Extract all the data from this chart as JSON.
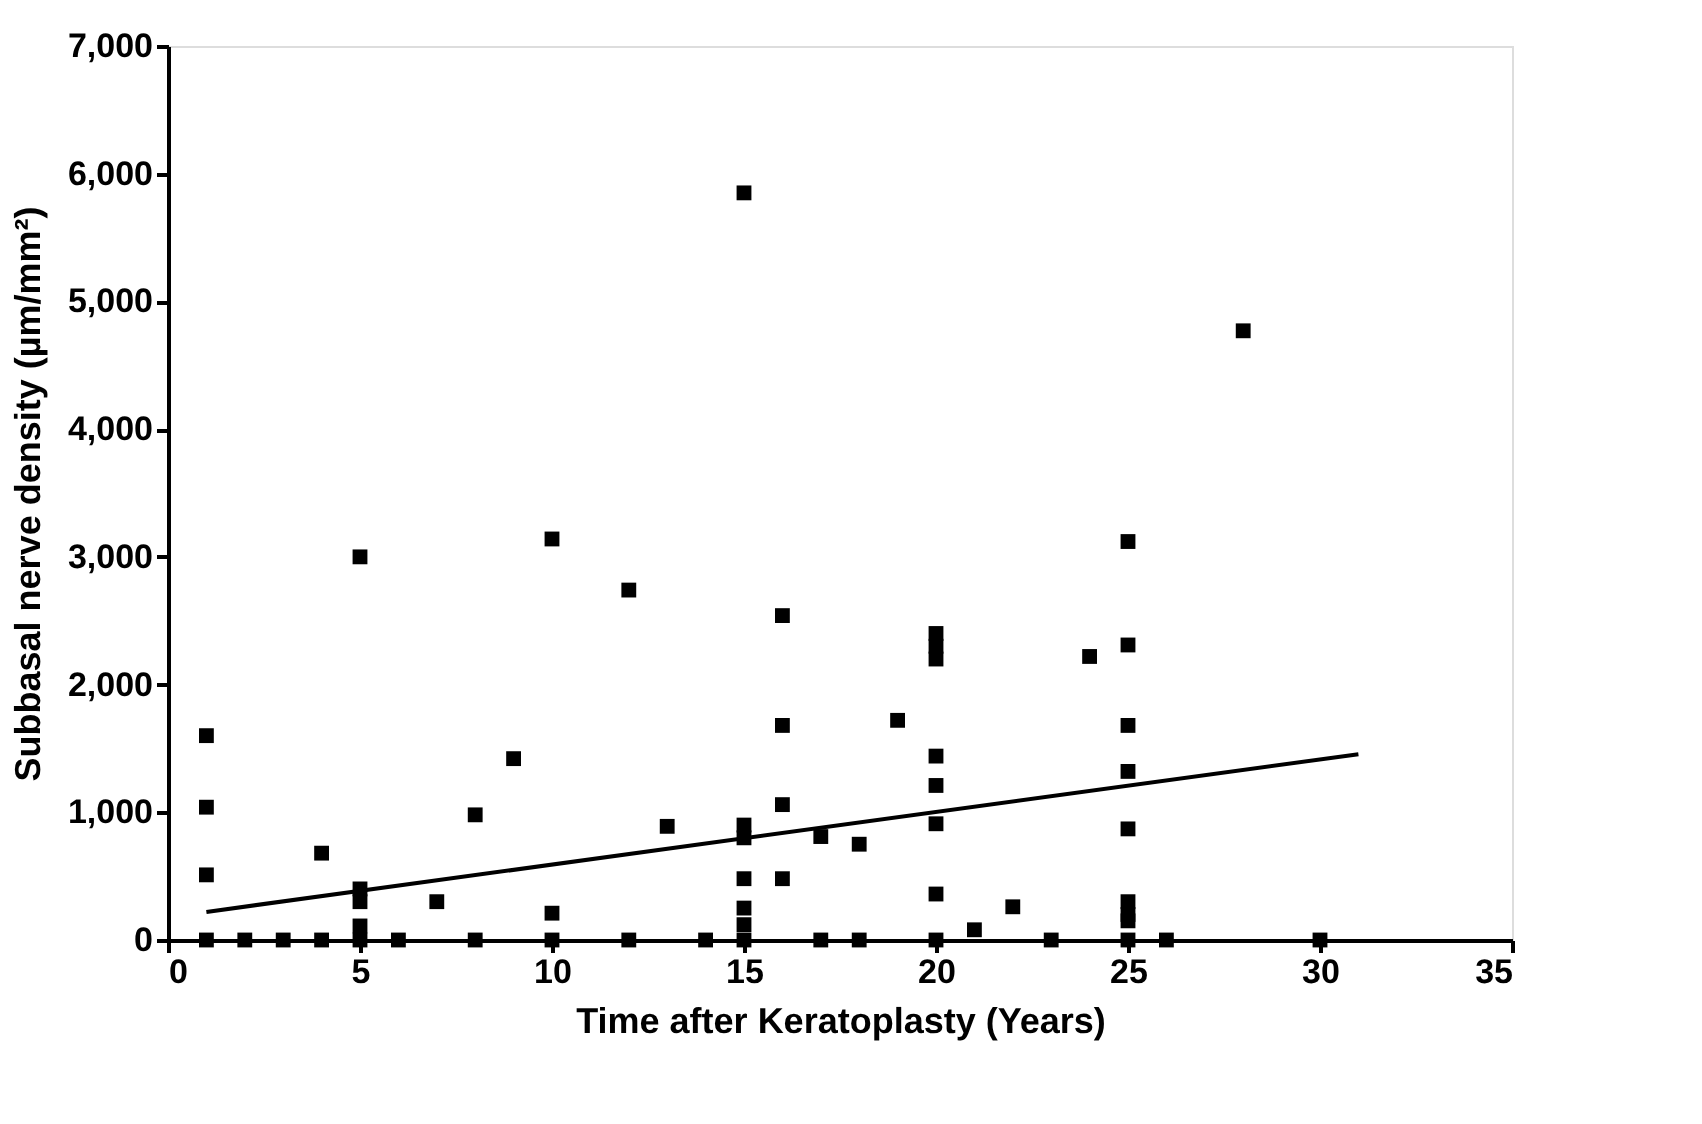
{
  "chart_data": {
    "type": "scatter",
    "xlabel": "Time after Keratoplasty (Years)",
    "ylabel": "Subbasal nerve density (µm/mm²)",
    "xlim": [
      0,
      35
    ],
    "xticks": [
      0,
      5,
      10,
      15,
      20,
      25,
      30,
      35
    ],
    "ylim": [
      0,
      7000
    ],
    "yticks": [
      {
        "value": 0,
        "label": "0"
      },
      {
        "value": 1000,
        "label": "1,000"
      },
      {
        "value": 2000,
        "label": "2,000"
      },
      {
        "value": 3000,
        "label": "3,000"
      },
      {
        "value": 4000,
        "label": "4,000"
      },
      {
        "value": 5000,
        "label": "5,000"
      },
      {
        "value": 6000,
        "label": "6,000"
      },
      {
        "value": 7000,
        "label": "7,000"
      }
    ],
    "grid": false,
    "marker": "square",
    "series": [
      {
        "color": "#000000",
        "x": [
          1,
          1,
          1,
          1,
          2,
          3,
          4,
          4,
          5,
          5,
          5,
          5,
          5,
          6,
          7,
          8,
          8,
          9,
          10,
          10,
          10,
          12,
          12,
          13,
          14,
          15,
          15,
          15,
          15,
          15,
          15,
          15,
          16,
          16,
          16,
          16,
          17,
          17,
          18,
          18,
          19,
          20,
          20,
          20,
          20,
          20,
          20,
          20,
          20,
          21,
          22,
          23,
          24,
          25,
          25,
          25,
          25,
          25,
          25,
          25,
          25,
          25,
          26,
          28,
          30
        ],
        "values": [
          1600,
          1040,
          510,
          0,
          0,
          0,
          680,
          0,
          3000,
          400,
          300,
          110,
          0,
          0,
          300,
          980,
          0,
          1420,
          3140,
          210,
          0,
          2740,
          0,
          890,
          0,
          5850,
          900,
          800,
          480,
          250,
          120,
          0,
          2540,
          1680,
          1060,
          480,
          810,
          0,
          750,
          0,
          1720,
          2400,
          2300,
          2200,
          1440,
          1210,
          910,
          360,
          0,
          80,
          260,
          0,
          2220,
          3120,
          2310,
          1680,
          1320,
          870,
          300,
          200,
          150,
          0,
          0,
          4770,
          0
        ]
      },
      {
        "type": "line",
        "color": "#000000",
        "marker": "none",
        "line_style": "solid",
        "x": [
          1,
          31
        ],
        "values": [
          220,
          1455
        ]
      }
    ]
  }
}
